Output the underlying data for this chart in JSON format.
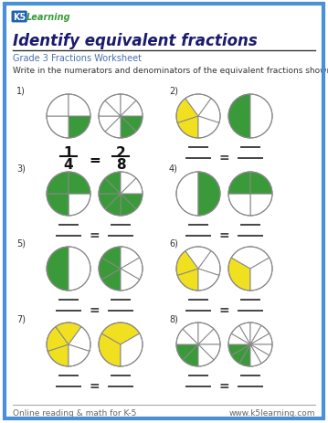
{
  "title": "Identify equivalent fractions",
  "subtitle": "Grade 3 Fractions Worksheet",
  "instruction": "Write in the numerators and denominators of the equivalent fractions shown.",
  "bg_color": "#ffffff",
  "border_color": "#4a90d9",
  "title_color": "#1a1a6e",
  "subtitle_color": "#4a70b0",
  "footer_left": "Online reading & math for K-5",
  "footer_right": "www.k5learning.com",
  "green": "#3a9a3a",
  "yellow": "#f0e020",
  "problems": [
    {
      "num": "1)",
      "circles": [
        {
          "slices": 4,
          "filled": [
            1
          ],
          "color": "green",
          "start_angle": 0
        },
        {
          "slices": 8,
          "filled": [
            1,
            2
          ],
          "color": "green",
          "start_angle": 0
        }
      ],
      "show_fraction": true,
      "frac1_num": "1",
      "frac1_den": "4",
      "frac2_num": "2",
      "frac2_den": "8"
    },
    {
      "num": "2)",
      "circles": [
        {
          "slices": 5,
          "filled": [
            1,
            2
          ],
          "color": "yellow",
          "start_angle": 90
        },
        {
          "slices": 2,
          "filled": [
            1
          ],
          "color": "green",
          "start_angle": 90
        }
      ],
      "show_fraction": false,
      "frac1_num": "",
      "frac1_den": "",
      "frac2_num": "",
      "frac2_den": ""
    },
    {
      "num": "3)",
      "circles": [
        {
          "slices": 4,
          "filled": [
            2,
            3,
            4
          ],
          "color": "green",
          "start_angle": 0
        },
        {
          "slices": 8,
          "filled": [
            1,
            2,
            3,
            4,
            5,
            6
          ],
          "color": "green",
          "start_angle": 0
        }
      ],
      "show_fraction": false,
      "frac1_num": "",
      "frac1_den": "",
      "frac2_num": "",
      "frac2_den": ""
    },
    {
      "num": "4)",
      "circles": [
        {
          "slices": 2,
          "filled": [
            2
          ],
          "color": "green",
          "start_angle": 90
        },
        {
          "slices": 4,
          "filled": [
            3,
            4
          ],
          "color": "green",
          "start_angle": 0
        }
      ],
      "show_fraction": false,
      "frac1_num": "",
      "frac1_den": "",
      "frac2_num": "",
      "frac2_den": ""
    },
    {
      "num": "5)",
      "circles": [
        {
          "slices": 2,
          "filled": [
            1
          ],
          "color": "green",
          "start_angle": 90
        },
        {
          "slices": 6,
          "filled": [
            1,
            2,
            3
          ],
          "color": "green",
          "start_angle": 90
        }
      ],
      "show_fraction": false,
      "frac1_num": "",
      "frac1_den": "",
      "frac2_num": "",
      "frac2_den": ""
    },
    {
      "num": "6)",
      "circles": [
        {
          "slices": 5,
          "filled": [
            1,
            2
          ],
          "color": "yellow",
          "start_angle": 90
        },
        {
          "slices": 3,
          "filled": [
            1
          ],
          "color": "yellow",
          "start_angle": 90
        }
      ],
      "show_fraction": false,
      "frac1_num": "",
      "frac1_den": "",
      "frac2_num": "",
      "frac2_den": ""
    },
    {
      "num": "7)",
      "circles": [
        {
          "slices": 5,
          "filled": [
            1,
            2,
            3
          ],
          "color": "yellow",
          "start_angle": 90
        },
        {
          "slices": 3,
          "filled": [
            1,
            2
          ],
          "color": "yellow",
          "start_angle": 90
        }
      ],
      "show_fraction": false,
      "frac1_num": "",
      "frac1_den": "",
      "frac2_num": "",
      "frac2_den": ""
    },
    {
      "num": "8)",
      "circles": [
        {
          "slices": 8,
          "filled": [
            1,
            2
          ],
          "color": "green",
          "start_angle": 90
        },
        {
          "slices": 12,
          "filled": [
            1,
            2,
            3
          ],
          "color": "green",
          "start_angle": 90
        }
      ],
      "show_fraction": false,
      "frac1_num": "",
      "frac1_den": "",
      "frac2_num": "",
      "frac2_den": ""
    }
  ]
}
